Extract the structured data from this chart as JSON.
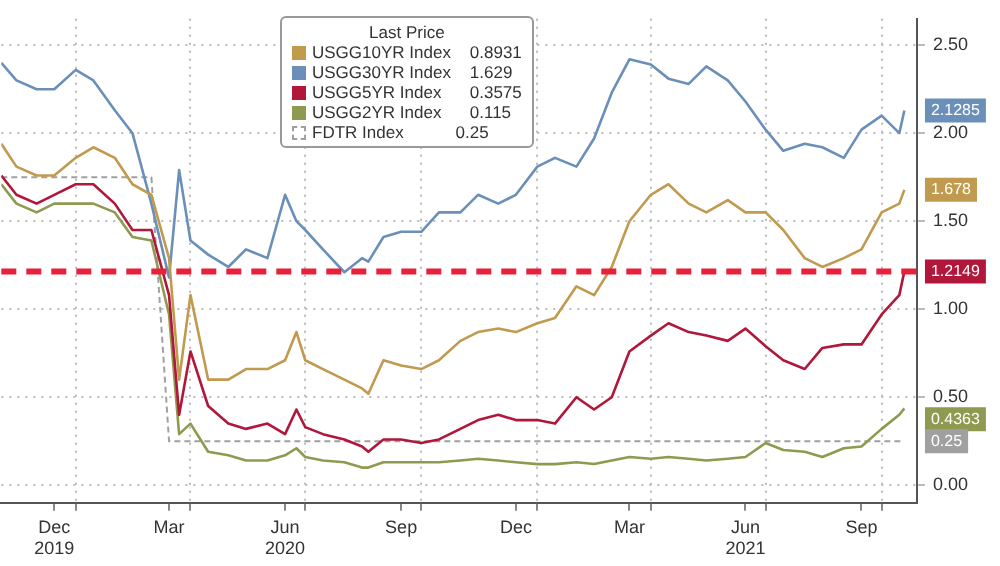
{
  "chart_data": {
    "type": "line",
    "legend_title": "Last Price",
    "x": [
      "2019-11-03",
      "2019-11-15",
      "2019-12-01",
      "2019-12-15",
      "2020-01-01",
      "2020-01-15",
      "2020-02-01",
      "2020-02-15",
      "2020-03-01",
      "2020-03-15",
      "2020-03-23",
      "2020-04-01",
      "2020-04-15",
      "2020-05-01",
      "2020-05-15",
      "2020-06-01",
      "2020-06-15",
      "2020-06-24",
      "2020-07-01",
      "2020-07-15",
      "2020-08-01",
      "2020-08-15",
      "2020-08-20",
      "2020-09-01",
      "2020-09-15",
      "2020-10-01",
      "2020-10-15",
      "2020-11-01",
      "2020-11-15",
      "2020-12-01",
      "2020-12-15",
      "2021-01-01",
      "2021-01-15",
      "2021-02-01",
      "2021-02-15",
      "2021-03-01",
      "2021-03-15",
      "2021-04-01",
      "2021-04-15",
      "2021-05-01",
      "2021-05-15",
      "2021-06-01",
      "2021-06-15",
      "2021-07-01",
      "2021-07-15",
      "2021-08-01",
      "2021-08-15",
      "2021-09-01",
      "2021-09-15",
      "2021-10-01",
      "2021-10-15",
      "2021-10-19"
    ],
    "series": [
      {
        "name": "USGG10YR Index    0.8931",
        "color": "#c09a4e",
        "values": [
          1.94,
          1.81,
          1.76,
          1.76,
          1.86,
          1.92,
          1.86,
          1.71,
          1.65,
          1.29,
          0.6,
          1.08,
          0.6,
          0.6,
          0.66,
          0.66,
          0.71,
          0.87,
          0.71,
          0.66,
          0.6,
          0.55,
          0.52,
          0.71,
          0.68,
          0.66,
          0.71,
          0.82,
          0.87,
          0.89,
          0.87,
          0.92,
          0.95,
          1.13,
          1.08,
          1.24,
          1.5,
          1.65,
          1.71,
          1.6,
          1.55,
          1.62,
          1.55,
          1.55,
          1.45,
          1.29,
          1.24,
          1.29,
          1.34,
          1.55,
          1.6,
          1.678
        ],
        "value_labels": [
          null,
          null,
          null,
          null,
          null,
          null,
          null,
          null,
          null,
          null,
          null,
          null,
          null,
          null,
          null,
          null,
          null,
          null,
          null,
          null,
          null,
          null,
          null,
          null,
          null,
          null,
          null,
          null,
          null,
          null,
          null,
          null,
          null,
          null,
          null,
          null,
          null,
          null,
          null,
          null,
          null,
          null,
          null,
          null,
          null,
          null,
          null,
          null,
          null,
          null,
          null,
          "1.678"
        ]
      },
      {
        "name": "USGG30YR Index    1.629",
        "color": "#6a8fb8",
        "values": [
          2.4,
          2.3,
          2.25,
          2.25,
          2.36,
          2.3,
          2.13,
          2.0,
          1.6,
          1.18,
          1.79,
          1.39,
          1.31,
          1.24,
          1.34,
          1.29,
          1.65,
          1.5,
          1.45,
          1.34,
          1.21,
          1.29,
          1.27,
          1.41,
          1.44,
          1.44,
          1.55,
          1.55,
          1.65,
          1.6,
          1.65,
          1.81,
          1.86,
          1.81,
          1.97,
          2.23,
          2.42,
          2.39,
          2.31,
          2.28,
          2.38,
          2.3,
          2.18,
          2.02,
          1.9,
          1.94,
          1.92,
          1.86,
          2.02,
          2.1,
          2.0,
          2.1285
        ],
        "value_labels": [
          null,
          null,
          null,
          null,
          null,
          null,
          null,
          null,
          null,
          null,
          null,
          null,
          null,
          null,
          null,
          null,
          null,
          null,
          null,
          null,
          null,
          null,
          null,
          null,
          null,
          null,
          null,
          null,
          null,
          null,
          null,
          null,
          null,
          null,
          null,
          null,
          null,
          null,
          null,
          null,
          null,
          null,
          null,
          null,
          null,
          null,
          null,
          null,
          null,
          null,
          null,
          "2.1285"
        ]
      },
      {
        "name": "USGG5YR Index      0.3575",
        "color": "#b0173a",
        "values": [
          1.76,
          1.65,
          1.6,
          1.65,
          1.71,
          1.71,
          1.6,
          1.45,
          1.45,
          1.08,
          0.4,
          0.76,
          0.45,
          0.35,
          0.32,
          0.35,
          0.29,
          0.43,
          0.33,
          0.29,
          0.26,
          0.22,
          0.19,
          0.26,
          0.26,
          0.24,
          0.26,
          0.32,
          0.37,
          0.4,
          0.37,
          0.37,
          0.35,
          0.5,
          0.43,
          0.5,
          0.76,
          0.85,
          0.92,
          0.87,
          0.85,
          0.82,
          0.89,
          0.79,
          0.71,
          0.66,
          0.78,
          0.8,
          0.8,
          0.97,
          1.08,
          1.2149
        ],
        "value_labels": [
          null,
          null,
          null,
          null,
          null,
          null,
          null,
          null,
          null,
          null,
          null,
          null,
          null,
          null,
          null,
          null,
          null,
          null,
          null,
          null,
          null,
          null,
          null,
          null,
          null,
          null,
          null,
          null,
          null,
          null,
          null,
          null,
          null,
          null,
          null,
          null,
          null,
          null,
          null,
          null,
          null,
          null,
          null,
          null,
          null,
          null,
          null,
          null,
          null,
          null,
          null,
          "1.2149"
        ]
      },
      {
        "name": "USGG2YR Index      0.115",
        "color": "#8f9a50",
        "values": [
          1.71,
          1.6,
          1.55,
          1.6,
          1.6,
          1.6,
          1.55,
          1.41,
          1.39,
          0.97,
          0.29,
          0.35,
          0.19,
          0.17,
          0.14,
          0.14,
          0.17,
          0.21,
          0.16,
          0.14,
          0.13,
          0.1,
          0.1,
          0.13,
          0.13,
          0.13,
          0.13,
          0.14,
          0.15,
          0.14,
          0.13,
          0.12,
          0.12,
          0.13,
          0.12,
          0.14,
          0.16,
          0.15,
          0.16,
          0.15,
          0.14,
          0.15,
          0.16,
          0.24,
          0.2,
          0.19,
          0.16,
          0.21,
          0.22,
          0.32,
          0.4,
          0.4363
        ],
        "value_labels": [
          null,
          null,
          null,
          null,
          null,
          null,
          null,
          null,
          null,
          null,
          null,
          null,
          null,
          null,
          null,
          null,
          null,
          null,
          null,
          null,
          null,
          null,
          null,
          null,
          null,
          null,
          null,
          null,
          null,
          null,
          null,
          null,
          null,
          null,
          null,
          null,
          null,
          null,
          null,
          null,
          null,
          null,
          null,
          null,
          null,
          null,
          null,
          null,
          null,
          null,
          null,
          "0.4363"
        ]
      },
      {
        "name": "FDTR Index           0.25",
        "color": "#a0a0a0",
        "line_style": "dashed",
        "values": [
          1.75,
          1.75,
          1.75,
          1.75,
          1.75,
          1.75,
          1.75,
          1.75,
          1.75,
          0.25,
          0.25,
          0.25,
          0.25,
          0.25,
          0.25,
          0.25,
          0.25,
          0.25,
          0.25,
          0.25,
          0.25,
          0.25,
          0.25,
          0.25,
          0.25,
          0.25,
          0.25,
          0.25,
          0.25,
          0.25,
          0.25,
          0.25,
          0.25,
          0.25,
          0.25,
          0.25,
          0.25,
          0.25,
          0.25,
          0.25,
          0.25,
          0.25,
          0.25,
          0.25,
          0.25,
          0.25,
          0.25,
          0.25,
          0.25,
          0.25,
          0.25,
          0.25
        ],
        "value_labels": [
          null,
          null,
          null,
          null,
          null,
          null,
          null,
          null,
          null,
          null,
          null,
          null,
          null,
          null,
          null,
          null,
          null,
          null,
          null,
          null,
          null,
          null,
          null,
          null,
          null,
          null,
          null,
          null,
          null,
          null,
          null,
          null,
          null,
          null,
          null,
          null,
          null,
          null,
          null,
          null,
          null,
          null,
          null,
          null,
          null,
          null,
          null,
          null,
          null,
          null,
          null,
          "0.25"
        ]
      }
    ],
    "xlim": [
      "2019-11-03",
      "2021-10-29"
    ],
    "xticks": [
      {
        "value": "2019-12-15",
        "label": "Dec\n2019"
      },
      {
        "value": "2020-01-01",
        "label": null
      },
      {
        "value": "2020-03-15",
        "label": "Mar"
      },
      {
        "value": "2020-04-01",
        "label": null
      },
      {
        "value": "2020-06-15",
        "label": "Jun\n2020"
      },
      {
        "value": "2020-07-01",
        "label": null
      },
      {
        "value": "2020-09-15",
        "label": "Sep"
      },
      {
        "value": "2020-10-01",
        "label": null
      },
      {
        "value": "2020-12-15",
        "label": "Dec"
      },
      {
        "value": "2021-01-01",
        "label": null
      },
      {
        "value": "2021-03-15",
        "label": "Mar"
      },
      {
        "value": "2021-04-01",
        "label": null
      },
      {
        "value": "2021-06-15",
        "label": "Jun\n2021"
      },
      {
        "value": "2021-07-01",
        "label": null
      },
      {
        "value": "2021-09-15",
        "label": "Sep"
      },
      {
        "value": "2021-10-01",
        "label": null
      }
    ],
    "ylim": [
      -0.1,
      2.65
    ],
    "yticks": [
      {
        "value": 0,
        "label": "0.00"
      },
      {
        "value": 0.5,
        "label": "0.50"
      },
      {
        "value": 1,
        "label": "1.00"
      },
      {
        "value": 1.5,
        "label": "1.50"
      },
      {
        "value": 2,
        "label": "2.00"
      },
      {
        "value": 2.5,
        "label": "2.50"
      }
    ],
    "ref_lines": [
      {
        "axis": "y",
        "value": 1.2149,
        "color": "#e8203a",
        "line_style": "dashed"
      }
    ],
    "grid": true,
    "legend": "top"
  }
}
